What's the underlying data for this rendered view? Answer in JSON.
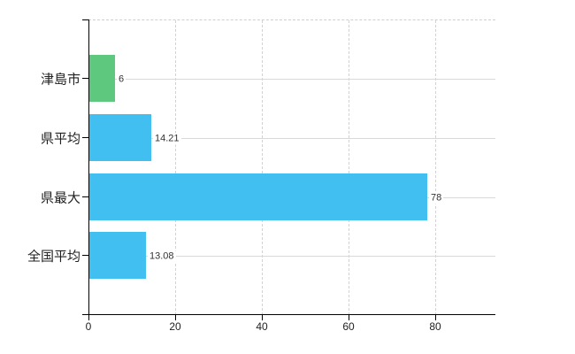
{
  "chart_data": {
    "type": "bar",
    "orientation": "horizontal",
    "title": "",
    "xlabel": "",
    "ylabel": "",
    "categories": [
      "津島市",
      "県平均",
      "県最大",
      "全国平均"
    ],
    "values": [
      6,
      14.21,
      78,
      13.08
    ],
    "value_labels": [
      "6",
      "14.21",
      "78",
      "13.08"
    ],
    "series": [
      {
        "name": "municipal-comparison",
        "values": [
          6,
          14.21,
          78,
          13.08
        ]
      }
    ],
    "bar_colors": [
      "#5ec87f",
      "#40bff0",
      "#40bff0",
      "#40bff0"
    ],
    "x_ticks": [
      0,
      20,
      40,
      60,
      80
    ],
    "x_tick_labels": [
      "0",
      "20",
      "40",
      "60",
      "80"
    ],
    "xlim": [
      0,
      93.9
    ],
    "grid": "on",
    "legend": "none",
    "colors": {
      "accent_green": "#5ec87f",
      "accent_blue": "#40bff0",
      "axis": "#000000",
      "grid_horizontal": "#d9d9d9",
      "grid_vertical": "#d2d2d2",
      "text": "#222222",
      "value_text": "#333333",
      "background": "#ffffff"
    }
  }
}
